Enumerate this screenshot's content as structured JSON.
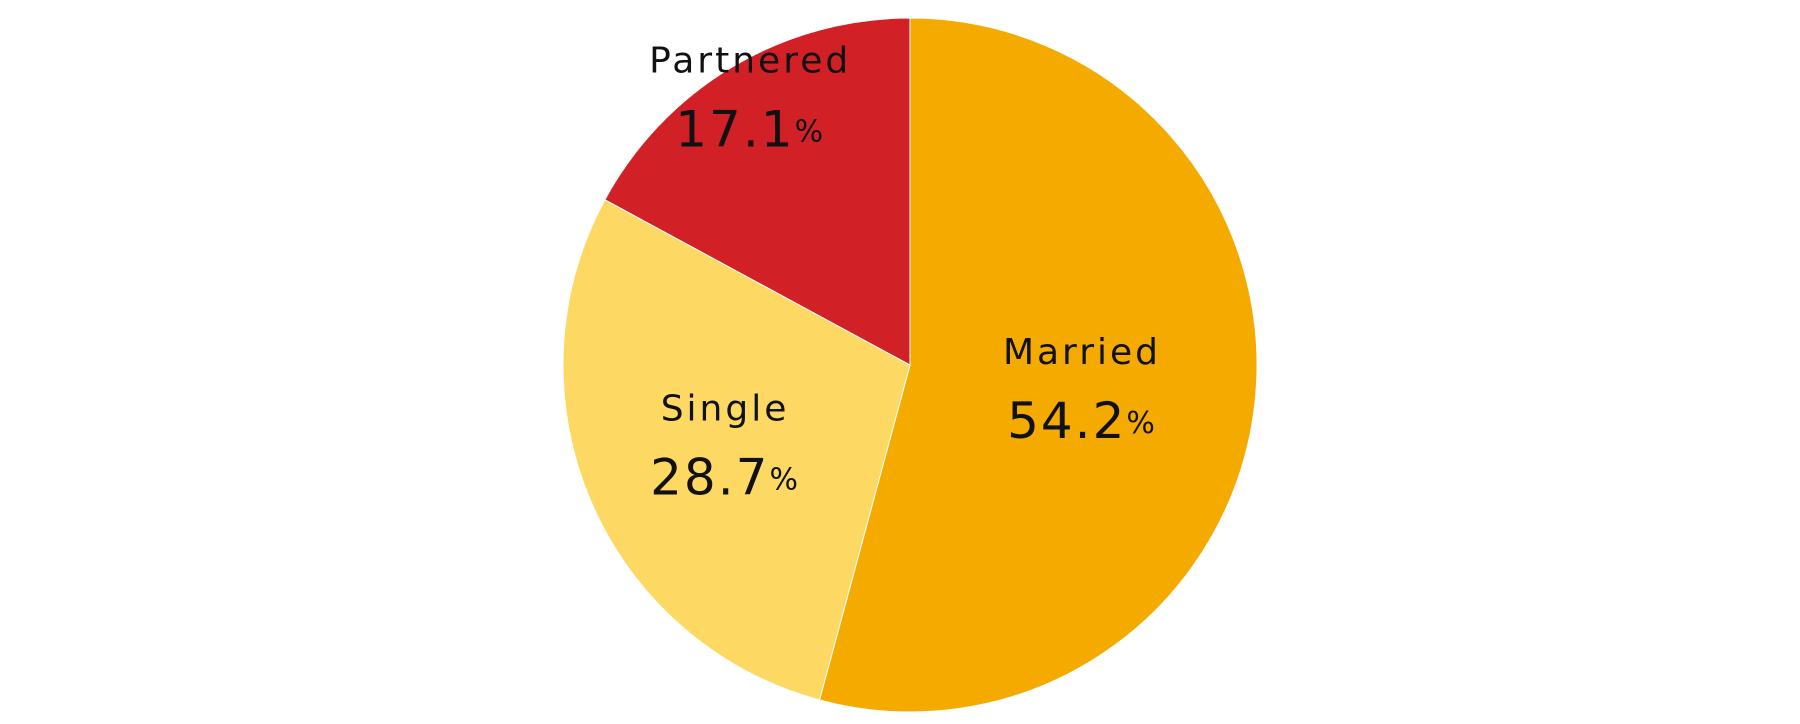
{
  "chart_data": {
    "type": "pie",
    "categories": [
      "Married",
      "Single",
      "Partnered"
    ],
    "values": [
      54.2,
      28.7,
      17.1
    ],
    "value_labels": [
      "54.2%",
      "28.7%",
      "17.1%"
    ],
    "colors": [
      "#f5aa00",
      "#fdd963",
      "#d12026"
    ]
  }
}
